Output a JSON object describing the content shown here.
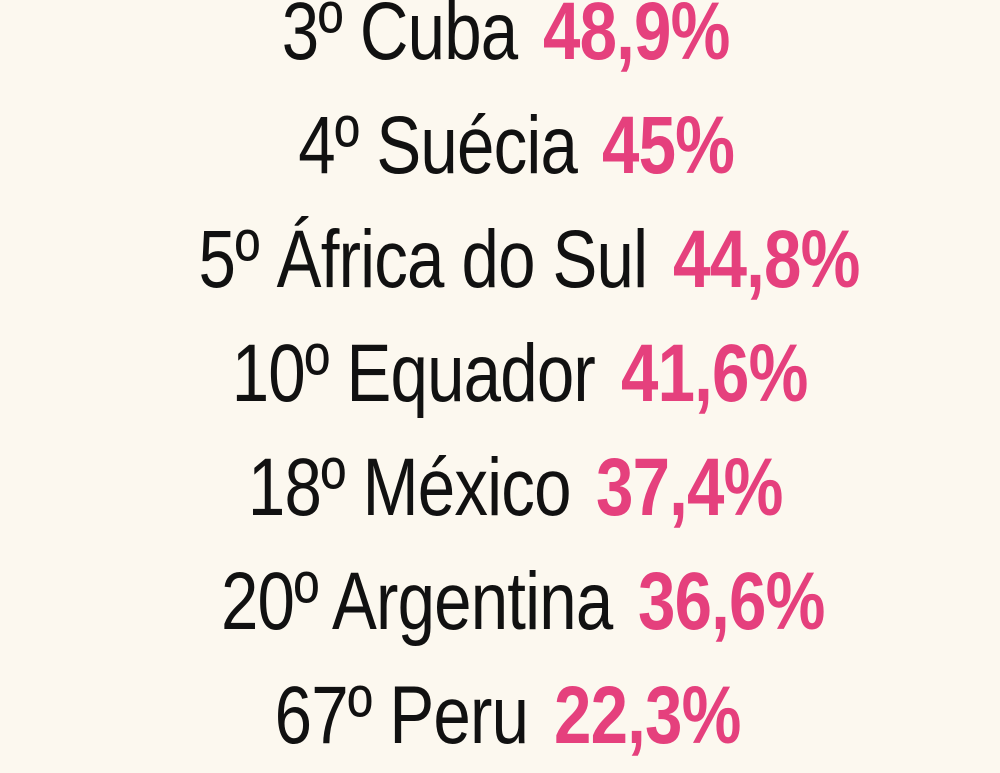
{
  "ranking": [
    {
      "label": "3º Cuba",
      "value": "48,9%"
    },
    {
      "label": "4º Suécia",
      "value": "45%"
    },
    {
      "label": "5º África do Sul",
      "value": "44,8%"
    },
    {
      "label": "10º Equador",
      "value": "41,6%"
    },
    {
      "label": "18º México",
      "value": "37,4%"
    },
    {
      "label": "20º Argentina",
      "value": "36,6%"
    },
    {
      "label": "67º Peru",
      "value": "22,3%"
    }
  ],
  "colors": {
    "background": "#fcf8ef",
    "text": "#111111",
    "accent": "#e5407d"
  }
}
